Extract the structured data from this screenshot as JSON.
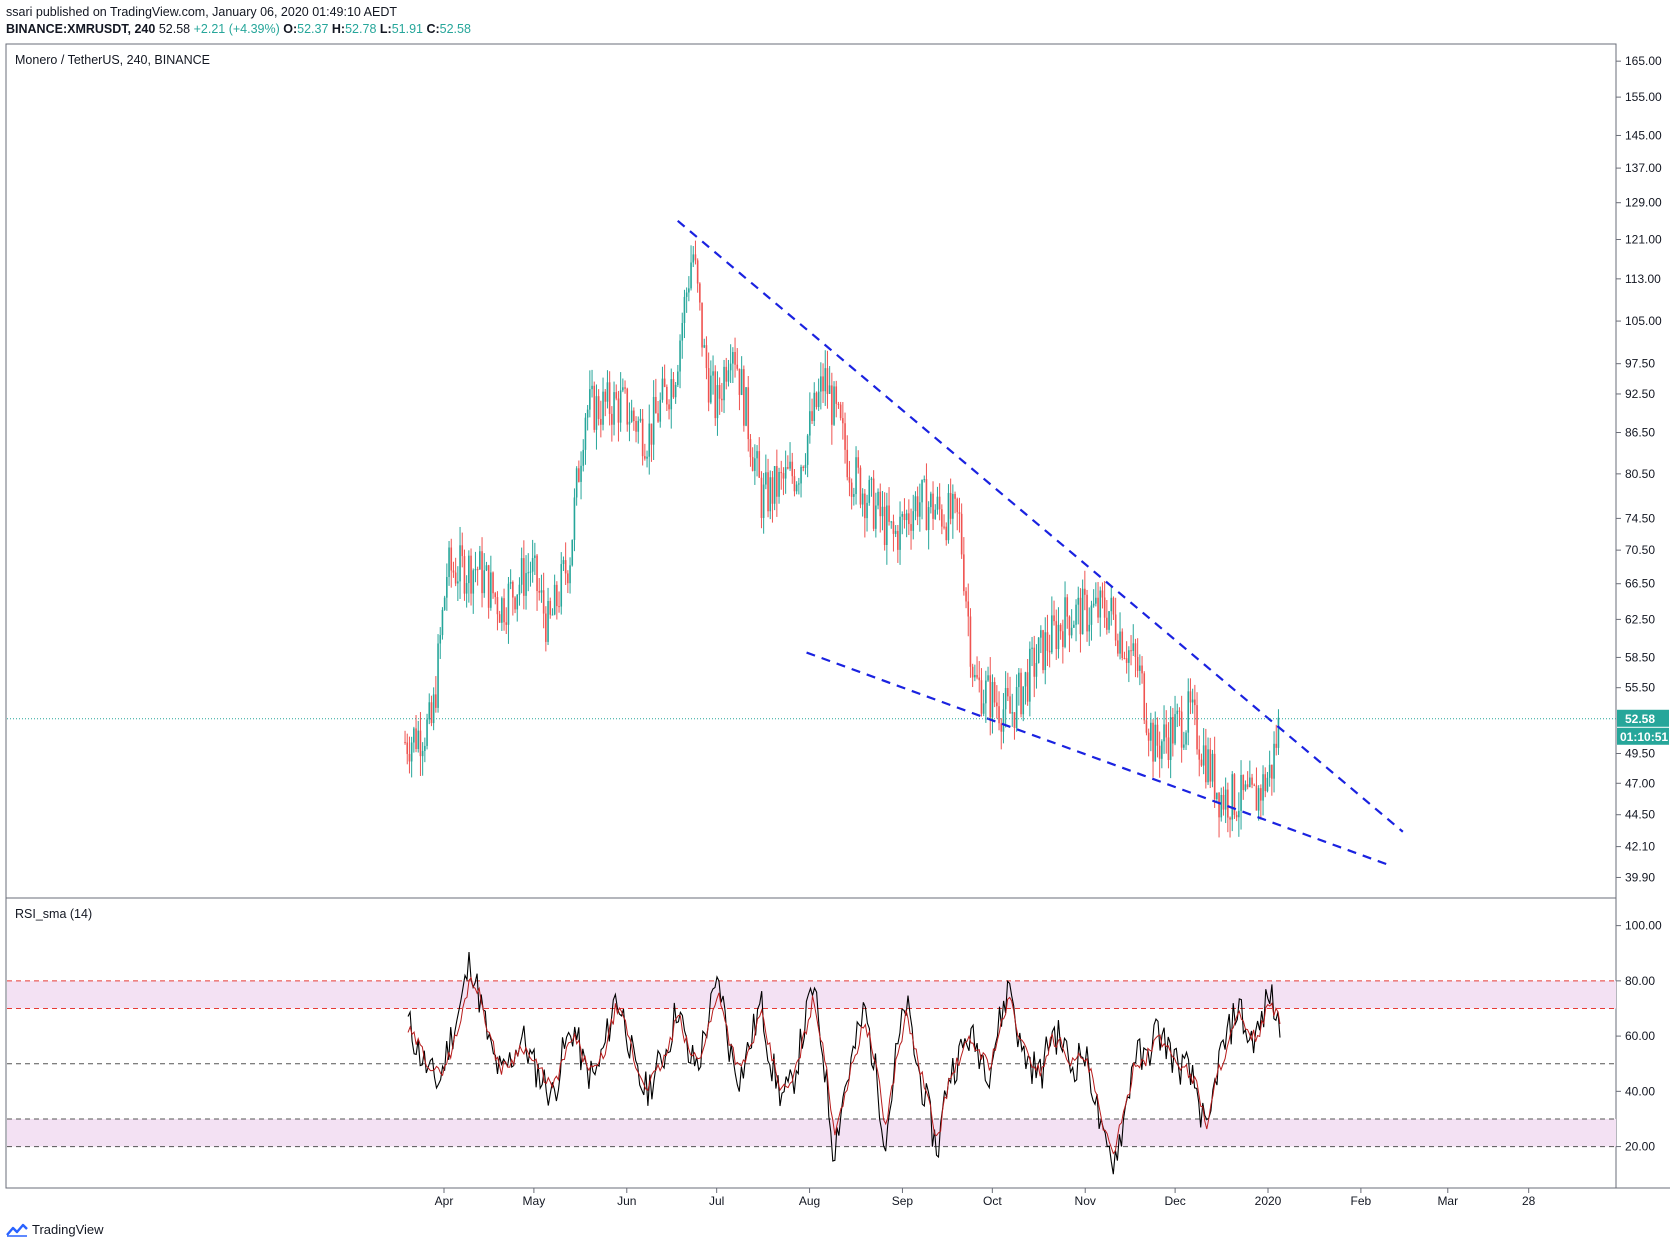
{
  "header": {
    "published": "ssari published on TradingView.com, January 06, 2020 01:49:10 AEDT",
    "symbol": "BINANCE:XMRUSDT, 240",
    "last": "52.58",
    "change": "+2.21 (+4.39%)",
    "o_label": "O:",
    "o_value": "52.37",
    "h_label": "H:",
    "h_value": "52.78",
    "l_label": "L:",
    "l_value": "51.91",
    "c_label": "C:",
    "c_value": "52.58"
  },
  "footer": {
    "brand": "TradingView"
  },
  "colors": {
    "up": "#26a69a",
    "down": "#ef5350",
    "trendline": "#1a22e0",
    "rsi_line": "#000000",
    "rsi_sma": "#b71c1c",
    "band": "#f3e1f3",
    "price_label_bg": "#26a69a"
  },
  "chart_data": [
    {
      "type": "candlestick",
      "title": "Monero / TetherUS, 240, BINANCE",
      "y_scale": "log",
      "ylim": [
        38.5,
        170
      ],
      "y_ticks": [
        "165.00",
        "155.00",
        "145.00",
        "137.00",
        "129.00",
        "121.00",
        "113.00",
        "105.00",
        "97.50",
        "92.50",
        "86.50",
        "80.50",
        "74.50",
        "70.50",
        "66.50",
        "62.50",
        "58.50",
        "55.50",
        "49.50",
        "47.00",
        "44.50",
        "42.10",
        "39.90"
      ],
      "x_ticks": [
        "Apr",
        "May",
        "Jun",
        "Jul",
        "Aug",
        "Sep",
        "Oct",
        "Nov",
        "Dec",
        "2020",
        "Feb",
        "Mar",
        "28"
      ],
      "last_price": "52.58",
      "countdown": "01:10:51",
      "price_path": [
        {
          "d": "2019-03-19",
          "p": 50.5
        },
        {
          "d": "2019-03-28",
          "p": 52.0
        },
        {
          "d": "2019-04-02",
          "p": 68.0
        },
        {
          "d": "2019-04-12",
          "p": 68.5
        },
        {
          "d": "2019-04-20",
          "p": 64.0
        },
        {
          "d": "2019-04-30",
          "p": 68.5
        },
        {
          "d": "2019-05-06",
          "p": 61.5
        },
        {
          "d": "2019-05-13",
          "p": 70.0
        },
        {
          "d": "2019-05-18",
          "p": 90.0
        },
        {
          "d": "2019-05-30",
          "p": 91.0
        },
        {
          "d": "2019-06-08",
          "p": 86.0
        },
        {
          "d": "2019-06-17",
          "p": 96.0
        },
        {
          "d": "2019-06-23",
          "p": 119.0
        },
        {
          "d": "2019-06-27",
          "p": 98.0
        },
        {
          "d": "2019-07-01",
          "p": 90.0
        },
        {
          "d": "2019-07-06",
          "p": 103.0
        },
        {
          "d": "2019-07-16",
          "p": 77.0
        },
        {
          "d": "2019-07-28",
          "p": 81.0
        },
        {
          "d": "2019-08-06",
          "p": 95.0
        },
        {
          "d": "2019-08-15",
          "p": 81.0
        },
        {
          "d": "2019-08-29",
          "p": 72.0
        },
        {
          "d": "2019-09-06",
          "p": 77.0
        },
        {
          "d": "2019-09-20",
          "p": 74.0
        },
        {
          "d": "2019-09-25",
          "p": 56.0
        },
        {
          "d": "2019-10-07",
          "p": 53.0
        },
        {
          "d": "2019-10-16",
          "p": 58.5
        },
        {
          "d": "2019-10-26",
          "p": 63.0
        },
        {
          "d": "2019-11-09",
          "p": 63.5
        },
        {
          "d": "2019-11-19",
          "p": 57.0
        },
        {
          "d": "2019-11-24",
          "p": 50.0
        },
        {
          "d": "2019-12-06",
          "p": 53.0
        },
        {
          "d": "2019-12-16",
          "p": 46.0
        },
        {
          "d": "2019-12-27",
          "p": 45.5
        },
        {
          "d": "2020-01-02",
          "p": 48.0
        },
        {
          "d": "2020-01-05",
          "p": 52.58
        }
      ],
      "trendlines": [
        {
          "name": "upper",
          "from": {
            "d": "2019-06-18",
            "p": 125.0
          },
          "to": {
            "d": "2020-02-15",
            "p": 43.2
          }
        },
        {
          "name": "lower",
          "from": {
            "d": "2019-07-31",
            "p": 59.0
          },
          "to": {
            "d": "2020-02-10",
            "p": 40.8
          }
        }
      ]
    },
    {
      "type": "line",
      "title": "RSI_sma (14)",
      "ylim": [
        5,
        110
      ],
      "y_ticks": [
        "100.00",
        "80.00",
        "60.00",
        "40.00",
        "20.00"
      ],
      "levels": [
        20,
        30,
        50,
        70,
        80
      ],
      "series": [
        {
          "key": "rsi",
          "values": [
            65,
            55,
            47,
            43,
            58,
            70,
            88,
            72,
            54,
            46,
            52,
            60,
            50,
            44,
            38,
            55,
            63,
            48,
            45,
            57,
            75,
            64,
            45,
            40,
            48,
            56,
            72,
            52,
            50,
            68,
            80,
            55,
            45,
            58,
            72,
            50,
            38,
            42,
            60,
            78,
            54,
            18,
            40,
            55,
            70,
            48,
            22,
            52,
            72,
            50,
            35,
            18,
            45,
            52,
            60,
            55,
            48,
            65,
            80,
            55,
            50,
            46,
            62,
            58,
            48,
            55,
            42,
            20,
            15,
            30,
            55,
            50,
            62,
            58,
            50,
            48,
            40,
            22,
            50,
            60,
            72,
            58,
            62,
            76,
            62
          ]
        },
        {
          "key": "rsi_sma",
          "values": [
            62,
            57,
            50,
            46,
            53,
            64,
            82,
            74,
            58,
            48,
            51,
            57,
            51,
            46,
            41,
            52,
            60,
            51,
            47,
            55,
            70,
            64,
            48,
            42,
            47,
            54,
            68,
            55,
            51,
            64,
            76,
            58,
            47,
            56,
            68,
            53,
            40,
            43,
            57,
            73,
            57,
            25,
            38,
            52,
            66,
            51,
            27,
            50,
            68,
            53,
            38,
            22,
            42,
            51,
            58,
            55,
            49,
            62,
            74,
            58,
            51,
            47,
            59,
            57,
            50,
            53,
            44,
            25,
            19,
            31,
            51,
            51,
            59,
            57,
            51,
            48,
            42,
            27,
            47,
            57,
            68,
            59,
            61,
            72,
            65
          ]
        }
      ]
    }
  ]
}
